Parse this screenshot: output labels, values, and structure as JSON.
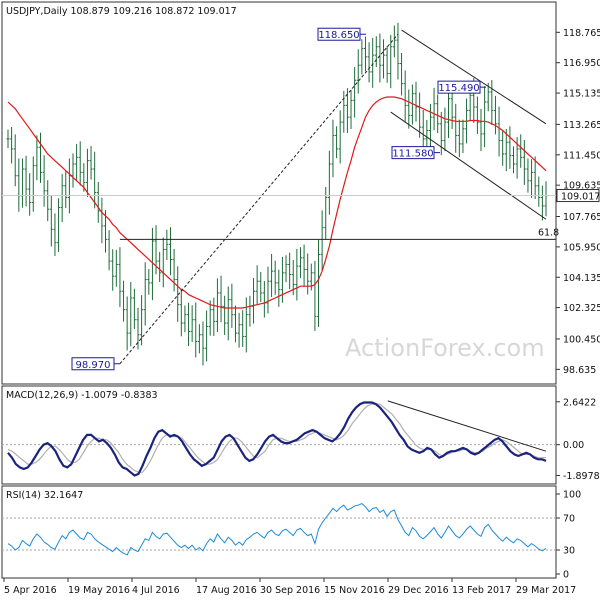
{
  "colors": {
    "bars": "#1e6b3a",
    "ma": "#e01a1a",
    "macd_line": "#1a237e",
    "macd_signal": "#b0b0b0",
    "rsi_line": "#1e8bd6",
    "trend": "#222222",
    "annotation_box": "#1a1a9c"
  },
  "chart_data": [
    {
      "type": "ohlc",
      "title": "USDJPY,Daily",
      "ohlc_text": "108.879 109.216 108.872 109.017",
      "last_price": 109.017,
      "last_price_label": "109.017",
      "ylim": [
        98.0,
        119.5
      ],
      "ytick_labels": [
        "118.765",
        "116.950",
        "115.135",
        "113.265",
        "111.450",
        "109.635",
        "107.765",
        "105.950",
        "104.135",
        "102.325",
        "100.450",
        "98.635"
      ],
      "ytick_values": [
        118.765,
        116.95,
        115.135,
        113.265,
        111.45,
        109.635,
        107.765,
        105.95,
        104.135,
        102.325,
        100.45,
        98.635
      ],
      "x_labels": [
        "5 Apr 2016",
        "19 May 2016",
        "4 Jul 2016",
        "17 Aug 2016",
        "30 Sep 2016",
        "15 Nov 2016",
        "29 Dec 2016",
        "13 Feb 2017",
        "29 Mar 2017"
      ],
      "annotations": [
        {
          "label": "118.650",
          "value": 118.65
        },
        {
          "label": "115.490",
          "value": 115.49
        },
        {
          "label": "111.580",
          "value": 111.58
        },
        {
          "label": "98.970",
          "value": 98.97
        }
      ],
      "fib_label": "61.8",
      "fib_level": 106.4,
      "watermark": "ActionForex.com",
      "closes": [
        112.4,
        111.8,
        110.2,
        109.0,
        110.6,
        109.4,
        108.6,
        110.8,
        111.9,
        110.4,
        109.3,
        108.2,
        107.0,
        106.2,
        108.3,
        109.6,
        108.9,
        110.2,
        110.9,
        111.3,
        110.4,
        109.8,
        111.1,
        110.6,
        109.2,
        108.1,
        107.2,
        106.4,
        105.1,
        104.2,
        104.9,
        103.3,
        102.2,
        100.8,
        102.9,
        101.6,
        100.7,
        102.2,
        104.0,
        103.8,
        106.3,
        105.1,
        104.4,
        105.8,
        106.1,
        105.2,
        104.0,
        102.5,
        101.4,
        101.9,
        100.9,
        101.6,
        100.3,
        100.7,
        99.9,
        101.2,
        102.2,
        101.5,
        103.2,
        102.4,
        101.4,
        102.8,
        101.9,
        100.8,
        101.3,
        100.6,
        101.9,
        102.4,
        103.3,
        103.9,
        103.2,
        102.6,
        103.9,
        104.5,
        103.8,
        103.4,
        104.4,
        104.9,
        104.3,
        103.7,
        104.8,
        105.3,
        104.6,
        103.9,
        104.4,
        101.8,
        105.5,
        107.1,
        108.9,
        110.9,
        112.6,
        111.8,
        113.4,
        114.4,
        113.7,
        114.7,
        115.9,
        116.8,
        117.8,
        117.3,
        116.4,
        117.4,
        117.9,
        116.8,
        117.4,
        116.3,
        117.9,
        118.3,
        116.9,
        115.7,
        114.4,
        113.8,
        115.1,
        114.3,
        113.1,
        112.4,
        112.9,
        113.7,
        114.5,
        113.3,
        112.3,
        113.4,
        114.8,
        113.7,
        112.6,
        112.1,
        113.0,
        114.1,
        115.0,
        114.3,
        113.4,
        112.7,
        114.6,
        115.2,
        114.1,
        113.3,
        112.3,
        111.5,
        112.2,
        111.4,
        110.9,
        111.8,
        111.3,
        110.6,
        109.9,
        110.4,
        109.6,
        108.9,
        108.4,
        109.0
      ],
      "ma_values": [
        114.6,
        114.4,
        114.2,
        113.9,
        113.6,
        113.3,
        113.0,
        112.7,
        112.4,
        112.1,
        111.8,
        111.5,
        111.3,
        111.1,
        110.9,
        110.7,
        110.5,
        110.3,
        110.1,
        109.9,
        109.7,
        109.5,
        109.2,
        108.9,
        108.6,
        108.3,
        108.0,
        107.8,
        107.6,
        107.3,
        107.1,
        106.8,
        106.6,
        106.4,
        106.2,
        106.0,
        105.8,
        105.6,
        105.4,
        105.2,
        105.0,
        104.8,
        104.6,
        104.4,
        104.2,
        104.0,
        103.8,
        103.6,
        103.4,
        103.3,
        103.1,
        103.0,
        102.9,
        102.8,
        102.7,
        102.6,
        102.5,
        102.45,
        102.4,
        102.35,
        102.3,
        102.3,
        102.3,
        102.3,
        102.3,
        102.3,
        102.35,
        102.4,
        102.45,
        102.5,
        102.55,
        102.6,
        102.7,
        102.8,
        102.9,
        103.0,
        103.1,
        103.2,
        103.3,
        103.4,
        103.5,
        103.6,
        103.6,
        103.6,
        103.6,
        103.7,
        104.0,
        104.5,
        105.2,
        106.0,
        107.0,
        107.9,
        108.8,
        109.6,
        110.4,
        111.1,
        111.9,
        112.5,
        113.1,
        113.7,
        114.1,
        114.4,
        114.6,
        114.75,
        114.85,
        114.9,
        114.9,
        114.9,
        114.85,
        114.8,
        114.7,
        114.6,
        114.5,
        114.4,
        114.3,
        114.2,
        114.1,
        114.0,
        113.9,
        113.8,
        113.7,
        113.6,
        113.55,
        113.5,
        113.45,
        113.45,
        113.45,
        113.45,
        113.5,
        113.5,
        113.5,
        113.45,
        113.45,
        113.4,
        113.3,
        113.2,
        113.05,
        112.9,
        112.7,
        112.5,
        112.3,
        112.1,
        111.9,
        111.7,
        111.5,
        111.3,
        111.1,
        110.9,
        110.7,
        110.5
      ]
    },
    {
      "type": "line",
      "title": "MACD(12,26,9) -1.0079 -0.8383",
      "ytick_labels": [
        "2.6422",
        "0.00",
        "-1.8978"
      ],
      "ytick_values": [
        2.6422,
        0.0,
        -1.8978
      ],
      "ylim": [
        -2.3,
        3.0
      ],
      "series": [
        {
          "name": "MACD",
          "values": [
            -0.5,
            -0.8,
            -1.2,
            -1.4,
            -1.5,
            -1.4,
            -1.1,
            -0.7,
            -0.3,
            0.0,
            0.1,
            -0.1,
            -0.4,
            -0.9,
            -1.3,
            -1.4,
            -1.2,
            -0.7,
            -0.2,
            0.3,
            0.6,
            0.6,
            0.4,
            0.2,
            0.3,
            0.1,
            -0.2,
            -0.6,
            -1.1,
            -1.4,
            -1.5,
            -1.7,
            -1.9,
            -1.8,
            -1.3,
            -0.7,
            -0.2,
            0.4,
            0.8,
            0.9,
            0.7,
            0.5,
            0.6,
            0.5,
            0.2,
            -0.2,
            -0.6,
            -0.9,
            -1.1,
            -1.3,
            -1.2,
            -1.0,
            -0.8,
            -0.3,
            0.2,
            0.5,
            0.6,
            0.4,
            0.0,
            -0.4,
            -0.8,
            -1.0,
            -0.9,
            -0.6,
            -0.2,
            0.2,
            0.5,
            0.6,
            0.4,
            0.2,
            0.1,
            0.1,
            0.2,
            0.3,
            0.5,
            0.7,
            0.8,
            0.9,
            0.8,
            0.6,
            0.4,
            0.3,
            0.2,
            0.4,
            0.7,
            1.1,
            1.6,
            2.0,
            2.3,
            2.5,
            2.6,
            2.6,
            2.6,
            2.5,
            2.3,
            2.0,
            1.7,
            1.4,
            1.0,
            0.6,
            0.3,
            -0.1,
            -0.3,
            -0.4,
            -0.5,
            -0.4,
            -0.2,
            -0.3,
            -0.6,
            -0.8,
            -0.7,
            -0.5,
            -0.4,
            -0.4,
            -0.3,
            -0.2,
            -0.3,
            -0.5,
            -0.6,
            -0.5,
            -0.3,
            -0.1,
            0.1,
            0.3,
            0.4,
            0.2,
            -0.1,
            -0.4,
            -0.6,
            -0.7,
            -0.6,
            -0.5,
            -0.6,
            -0.8,
            -0.9,
            -0.9,
            -1.0
          ]
        },
        {
          "name": "Signal",
          "values": [
            -0.3,
            -0.4,
            -0.6,
            -0.8,
            -1.0,
            -1.2,
            -1.2,
            -1.1,
            -0.9,
            -0.6,
            -0.3,
            -0.1,
            -0.1,
            -0.3,
            -0.6,
            -0.9,
            -1.1,
            -1.1,
            -0.9,
            -0.5,
            -0.1,
            0.2,
            0.4,
            0.4,
            0.3,
            0.3,
            0.1,
            -0.2,
            -0.5,
            -0.9,
            -1.2,
            -1.4,
            -1.6,
            -1.7,
            -1.7,
            -1.4,
            -1.0,
            -0.5,
            0.0,
            0.4,
            0.6,
            0.6,
            0.5,
            0.5,
            0.4,
            0.1,
            -0.2,
            -0.5,
            -0.8,
            -1.0,
            -1.2,
            -1.2,
            -1.1,
            -0.9,
            -0.5,
            -0.1,
            0.2,
            0.4,
            0.4,
            0.2,
            -0.1,
            -0.4,
            -0.7,
            -0.8,
            -0.6,
            -0.4,
            0.0,
            0.3,
            0.4,
            0.4,
            0.3,
            0.2,
            0.2,
            0.2,
            0.3,
            0.4,
            0.6,
            0.7,
            0.8,
            0.7,
            0.6,
            0.5,
            0.4,
            0.3,
            0.4,
            0.6,
            0.9,
            1.3,
            1.6,
            1.9,
            2.2,
            2.4,
            2.5,
            2.5,
            2.5,
            2.3,
            2.1,
            1.9,
            1.6,
            1.3,
            0.9,
            0.6,
            0.3,
            0.0,
            -0.2,
            -0.3,
            -0.3,
            -0.3,
            -0.4,
            -0.6,
            -0.7,
            -0.6,
            -0.5,
            -0.4,
            -0.4,
            -0.3,
            -0.3,
            -0.4,
            -0.5,
            -0.5,
            -0.4,
            -0.2,
            -0.1,
            0.1,
            0.2,
            0.3,
            0.2,
            0.0,
            -0.2,
            -0.4,
            -0.6,
            -0.6,
            -0.6,
            -0.7,
            -0.8,
            -0.8,
            -0.8
          ]
        }
      ]
    },
    {
      "type": "line",
      "title": "RSI(14) 32.1647",
      "ytick_labels": [
        "100",
        "70",
        "30",
        "0"
      ],
      "ytick_values": [
        100,
        70,
        30,
        0
      ],
      "ylim": [
        0,
        100
      ],
      "series": [
        {
          "name": "RSI",
          "values": [
            38,
            35,
            30,
            33,
            42,
            38,
            35,
            44,
            50,
            46,
            40,
            37,
            33,
            31,
            40,
            48,
            44,
            52,
            55,
            50,
            45,
            43,
            52,
            50,
            44,
            40,
            37,
            34,
            31,
            28,
            33,
            29,
            26,
            24,
            33,
            30,
            28,
            36,
            44,
            42,
            52,
            47,
            44,
            50,
            51,
            46,
            41,
            36,
            33,
            36,
            32,
            36,
            30,
            33,
            29,
            38,
            44,
            40,
            50,
            44,
            39,
            46,
            42,
            36,
            40,
            36,
            43,
            46,
            50,
            52,
            48,
            45,
            52,
            55,
            50,
            48,
            54,
            56,
            52,
            48,
            55,
            57,
            52,
            48,
            50,
            38,
            56,
            64,
            70,
            76,
            82,
            78,
            83,
            86,
            80,
            82,
            85,
            86,
            88,
            84,
            78,
            82,
            83,
            77,
            80,
            72,
            78,
            80,
            68,
            60,
            52,
            48,
            58,
            54,
            47,
            44,
            48,
            53,
            58,
            50,
            45,
            52,
            60,
            54,
            48,
            45,
            50,
            56,
            60,
            55,
            50,
            47,
            58,
            62,
            55,
            50,
            45,
            41,
            46,
            42,
            39,
            44,
            42,
            38,
            34,
            38,
            35,
            31,
            29,
            32
          ]
        }
      ]
    }
  ],
  "date_labels": [
    "5 Apr 2016",
    "19 May 2016",
    "4 Jul 2016",
    "17 Aug 2016",
    "30 Sep 2016",
    "15 Nov 2016",
    "29 Dec 2016",
    "13 Feb 2017",
    "29 Mar 2017"
  ]
}
